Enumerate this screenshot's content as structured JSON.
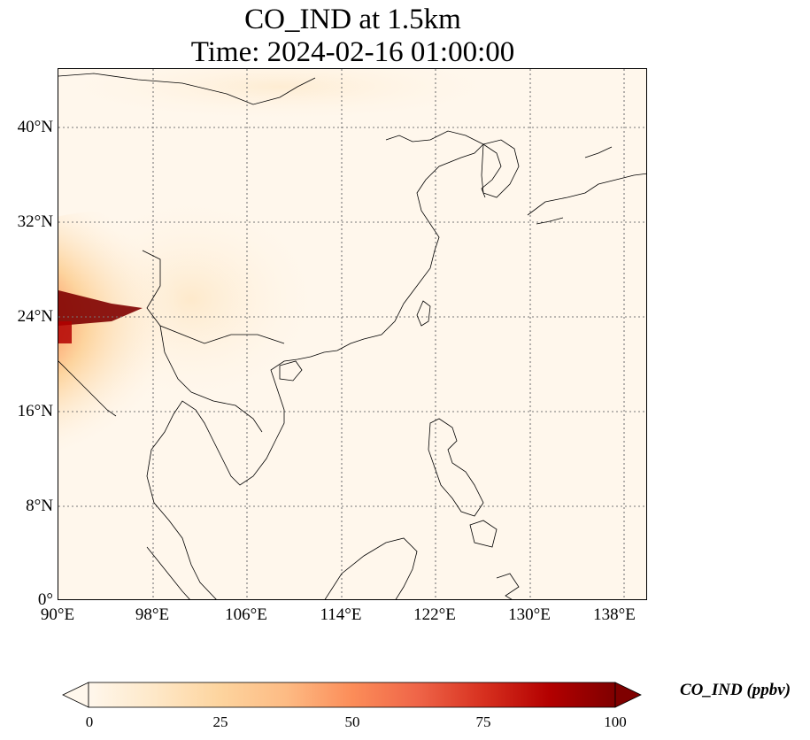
{
  "title": {
    "line1": "CO_IND at 1.5km",
    "line2": "Time: 2024-02-16 01:00:00"
  },
  "map": {
    "projection": "PlateCarree",
    "extent": {
      "lon_min": 90,
      "lon_max": 140,
      "lat_min": 0,
      "lat_max": 45
    },
    "gridlines": "dotted",
    "lat_ticks": [
      "40°N",
      "32°N",
      "24°N",
      "16°N",
      "8°N",
      "0°"
    ],
    "lon_ticks": [
      "90°E",
      "98°E",
      "106°E",
      "114°E",
      "122°E",
      "130°E",
      "138°E"
    ],
    "plume": {
      "description_source": "visible shading",
      "max_region_lat": 24.5,
      "max_region_lon": 92
    }
  },
  "colorbar": {
    "label": "CO_IND (ppbv)",
    "ticks": [
      "0",
      "25",
      "50",
      "75",
      "100"
    ],
    "min": 0,
    "max": 100,
    "extend": "both",
    "colormap": "OrRd",
    "colors": [
      "#fff7ec",
      "#fee8c8",
      "#fdd49e",
      "#fdbb84",
      "#fc8d59",
      "#ef6548",
      "#d7301f",
      "#b30000",
      "#7f0000"
    ]
  }
}
